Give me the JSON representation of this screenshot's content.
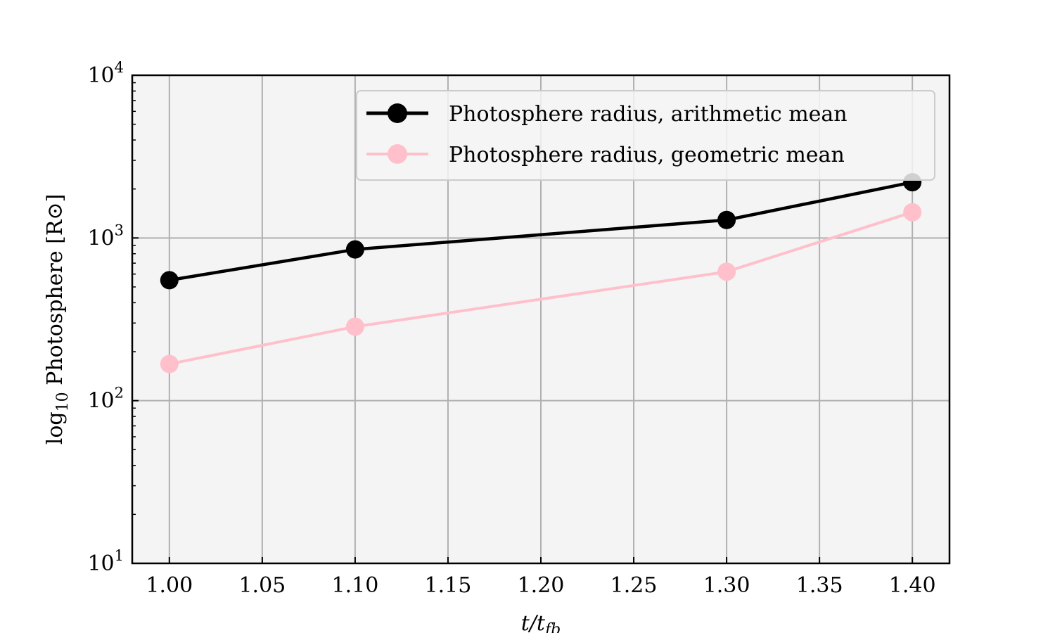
{
  "chart_data": {
    "type": "line",
    "xlabel": "t/t_fb",
    "ylabel": "log10 Photosphere [R⊙]",
    "x": [
      1.0,
      1.1,
      1.3,
      1.4
    ],
    "xlim": [
      0.98,
      1.42
    ],
    "ylim": [
      10,
      10000
    ],
    "yscale": "log",
    "xticks": [
      "1.00",
      "1.05",
      "1.10",
      "1.15",
      "1.20",
      "1.25",
      "1.30",
      "1.35",
      "1.40"
    ],
    "yticks": [
      {
        "base": "10",
        "exp": "1"
      },
      {
        "base": "10",
        "exp": "2"
      },
      {
        "base": "10",
        "exp": "3"
      },
      {
        "base": "10",
        "exp": "4"
      }
    ],
    "grid": true,
    "legend_position": "top-right",
    "series": [
      {
        "name": "Photosphere radius, arithmetic mean",
        "color": "#000000",
        "values": [
          550,
          850,
          1290,
          2200
        ]
      },
      {
        "name": "Photosphere radius, geometric mean",
        "color": "#ffc0cb",
        "values": [
          168,
          285,
          620,
          1440
        ]
      }
    ]
  }
}
